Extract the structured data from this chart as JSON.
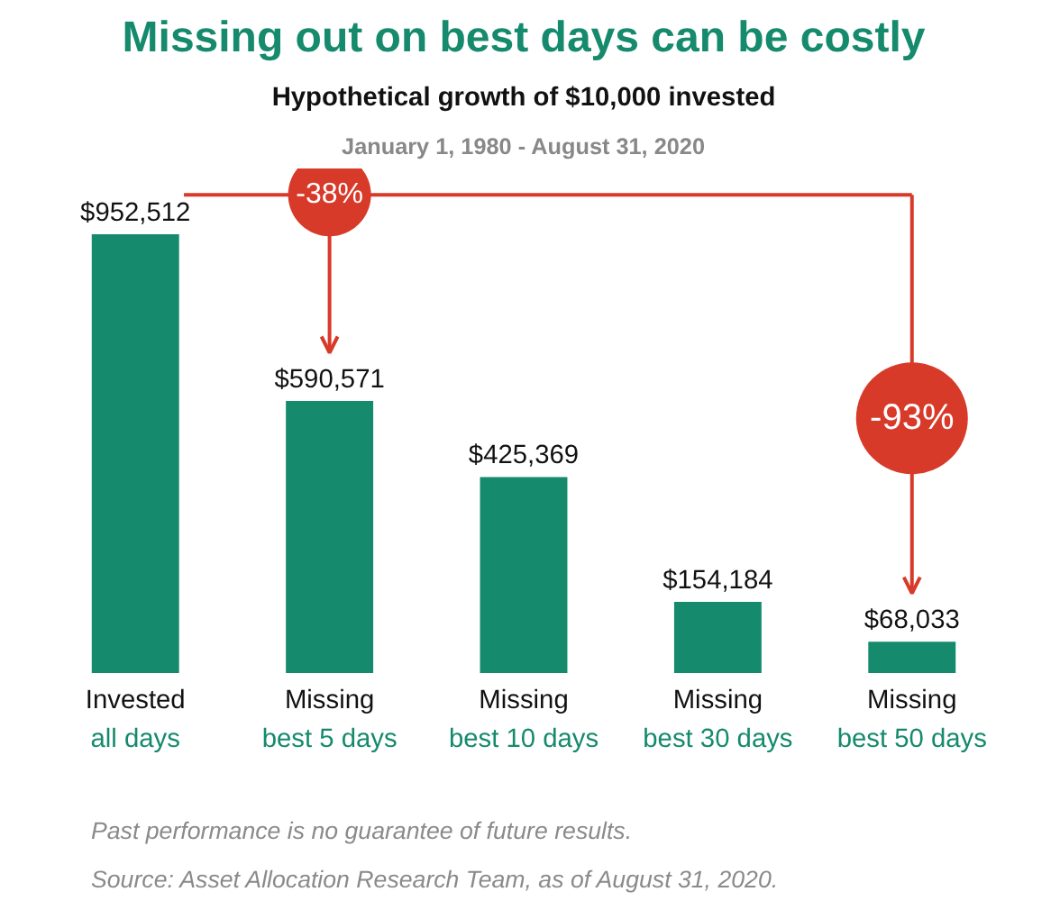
{
  "chart_data": {
    "type": "bar",
    "title": "Missing out on best days can be costly",
    "subtitle": "Hypothetical growth of $10,000 invested",
    "annotations": [
      "January 1, 1980 - August 31, 2020",
      "-38%",
      "-93%",
      "Past performance is no guarantee of future results.",
      "Source: Asset Allocation Research Team, as of August 31, 2020."
    ],
    "categories": [
      "Invested\nall days",
      "Missing\nbest 5 days",
      "Missing\nbest 10 days",
      "Missing\nbest 30 days",
      "Missing\nbest 50 days"
    ],
    "values": [
      952512,
      590571,
      425369,
      154184,
      68033
    ],
    "value_labels": [
      "$952,512",
      "$590,571",
      "$425,369",
      "$154,184",
      "$68,033"
    ],
    "color": "#158a6c"
  }
}
